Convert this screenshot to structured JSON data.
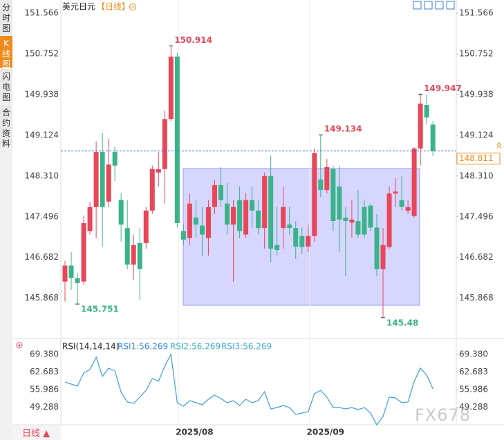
{
  "ui": {
    "tabs": [
      "分时图",
      "K线图",
      "闪电图",
      "合约资料"
    ],
    "period_button": "日线 ▲",
    "watermark": "FX678"
  },
  "chart_data": [
    {
      "type": "candlestick",
      "title": "美元日元",
      "subtitle": "【日线】",
      "up_color": "#e8475a",
      "down_color": "#3bb38a",
      "categories": [
        null,
        null,
        null,
        null,
        null,
        null,
        null,
        null,
        null,
        null,
        null,
        null,
        null,
        null,
        null,
        null,
        null,
        null,
        "2025/08",
        null,
        null,
        null,
        null,
        null,
        null,
        null,
        null,
        null,
        null,
        null,
        null,
        null,
        null,
        null,
        null,
        null,
        null,
        null,
        null,
        "2025/09",
        null,
        null,
        null,
        null,
        null,
        null,
        null,
        null,
        null,
        null,
        null,
        null,
        null,
        null,
        null,
        null,
        null,
        null,
        null,
        null
      ],
      "open": [
        146.2,
        146.52,
        146.27,
        146.2,
        147.21,
        147.69,
        148.79,
        147.8,
        148.79,
        147.83,
        147.27,
        146.54,
        146.97,
        146.97,
        147.62,
        148.38,
        148.45,
        149.45,
        150.7,
        147.21,
        147.07,
        147.48,
        147.32,
        147.07,
        147.69,
        148.13,
        147.76,
        147.34,
        147.83,
        147.14,
        147.83,
        147.62,
        147.27,
        148.31,
        146.93,
        147.27,
        147.34,
        147.27,
        147.11,
        146.9,
        147.11,
        148.24,
        148.03,
        148.45,
        148.1,
        147.48,
        147.38,
        147.41,
        147.69,
        147.72,
        147.28,
        146.45,
        146.89,
        147.96,
        147.83,
        147.62,
        147.51,
        148.86,
        149.73,
        149.34
      ],
      "high": [
        146.61,
        146.79,
        146.38,
        147.52,
        147.79,
        149.0,
        149.17,
        149.06,
        148.9,
        147.97,
        147.83,
        147.14,
        147.27,
        147.69,
        148.52,
        148.79,
        149.62,
        150.914,
        150.77,
        147.34,
        147.97,
        147.83,
        147.69,
        147.83,
        148.24,
        148.49,
        148.17,
        147.83,
        148.1,
        147.97,
        148.1,
        147.83,
        148.38,
        148.72,
        147.69,
        148.1,
        147.69,
        147.41,
        147.28,
        147.34,
        148.86,
        149.134,
        148.65,
        148.52,
        148.52,
        147.69,
        147.83,
        148.03,
        147.83,
        147.76,
        147.55,
        147.27,
        148.1,
        148.27,
        148.31,
        147.83,
        148.89,
        149.947,
        149.94,
        149.41
      ],
      "low": [
        145.8,
        146.03,
        145.751,
        146.14,
        147.14,
        147.07,
        146.9,
        147.69,
        148.21,
        147.0,
        146.45,
        146.24,
        145.83,
        146.86,
        147.55,
        148.1,
        147.76,
        149.41,
        147.28,
        146.93,
        146.93,
        147.07,
        146.72,
        146.72,
        147.55,
        147.69,
        147.14,
        146.2,
        147.07,
        147.07,
        147.27,
        147.14,
        146.86,
        146.59,
        146.72,
        146.86,
        147.14,
        146.65,
        146.75,
        146.79,
        147.0,
        147.89,
        147.96,
        147.21,
        146.79,
        146.31,
        147.07,
        147.07,
        147.07,
        147.21,
        146.31,
        145.48,
        146.86,
        147.69,
        147.62,
        147.55,
        147.48,
        148.52,
        149.34,
        148.71
      ],
      "close": [
        146.52,
        146.27,
        146.17,
        147.37,
        147.69,
        148.79,
        147.69,
        148.54,
        148.52,
        147.34,
        146.54,
        146.93,
        146.45,
        147.62,
        148.45,
        148.45,
        149.45,
        150.7,
        147.37,
        147.04,
        147.76,
        147.34,
        147.14,
        147.69,
        148.13,
        147.83,
        147.34,
        147.69,
        147.21,
        147.83,
        147.62,
        147.27,
        148.31,
        146.86,
        146.83,
        147.69,
        147.27,
        146.9,
        146.89,
        147.11,
        148.77,
        148.03,
        148.49,
        147.41,
        147.44,
        147.41,
        147.44,
        147.14,
        147.14,
        147.28,
        146.45,
        146.93,
        147.96,
        148.0,
        147.69,
        147.69,
        148.86,
        149.76,
        149.48,
        148.811
      ],
      "ylim": [
        145.09,
        151.72
      ],
      "yticks": [
        151.566,
        150.752,
        149.938,
        149.124,
        {
          "value": 148.31,
          "label": "148.310"
        },
        147.496,
        146.682,
        145.868
      ]
    },
    {
      "type": "line",
      "title": "RSI(14,14,14)",
      "legend": [
        "RSI1:56.269",
        "RSI2:56.269",
        "RSI3:56.269"
      ],
      "legend_colors": [
        "#3a8ad8",
        "#3ab0c8",
        "#4aa8d8"
      ],
      "color": "#3aa0d8",
      "values": [
        58.88,
        58.09,
        57.3,
        62.29,
        63.6,
        68.33,
        60.98,
        64.13,
        63.08,
        54.94,
        51.26,
        50.74,
        53.1,
        55.72,
        60.19,
        59.14,
        64.92,
        69.38,
        51.0,
        49.69,
        51.79,
        51.0,
        50.21,
        52.31,
        53.89,
        52.57,
        51.0,
        51.79,
        49.95,
        52.31,
        51.0,
        51.79,
        55.2,
        48.63,
        49.16,
        49.95,
        49.16,
        46.53,
        47.06,
        47.58,
        54.41,
        55.72,
        53.1,
        49.16,
        49.16,
        48.63,
        49.16,
        48.37,
        49.16,
        47.06,
        42.6,
        45.74,
        53.1,
        52.84,
        51.0,
        51.26,
        59.14,
        64.13,
        61.5,
        56.269
      ],
      "ylim": [
        41.8,
        72.0
      ],
      "yticks": [
        {
          "value": 69.38,
          "label": "69.380"
        },
        62.683,
        55.986,
        49.288
      ]
    }
  ]
}
